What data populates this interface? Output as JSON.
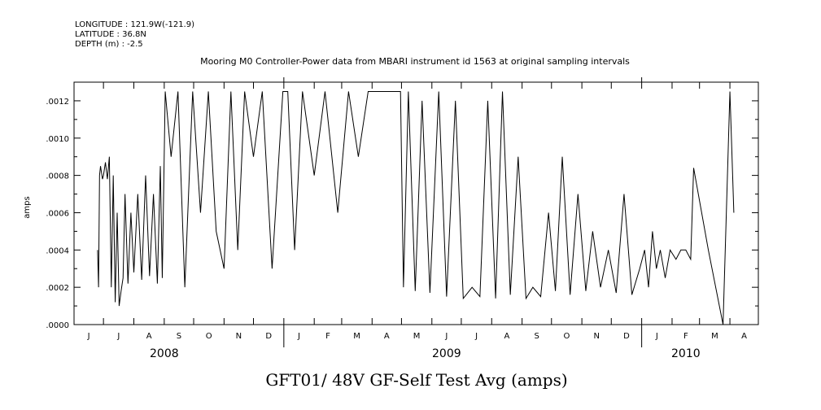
{
  "header": {
    "longitude": "LONGITUDE : 121.9W(-121.9)",
    "latitude": "LATITUDE : 36.8N",
    "depth": "DEPTH (m) : -2.5"
  },
  "chart_data": {
    "type": "line",
    "title": "Mooring M0 Controller-Power data from MBARI instrument id 1563 at original sampling intervals",
    "xlabel": "GFT01/ 48V GF-Self Test Avg (amps)",
    "ylabel": "amps",
    "ylim": [
      0,
      0.0013
    ],
    "yticks": [
      ".0000",
      ".0002",
      ".0004",
      ".0006",
      ".0008",
      ".0010",
      ".0012"
    ],
    "ytick_values": [
      0,
      0.0002,
      0.0004,
      0.0006,
      0.0008,
      0.001,
      0.0012
    ],
    "xlim": [
      "2008-06-01",
      "2010-04-30"
    ],
    "month_labels": [
      "J",
      "J",
      "A",
      "S",
      "O",
      "N",
      "D",
      "J",
      "F",
      "M",
      "A",
      "M",
      "J",
      "J",
      "A",
      "S",
      "O",
      "N",
      "D",
      "J",
      "F",
      "M",
      "A"
    ],
    "month_starts": [
      "2008-06-01",
      "2008-07-01",
      "2008-08-01",
      "2008-09-01",
      "2008-10-01",
      "2008-11-01",
      "2008-12-01",
      "2009-01-01",
      "2009-02-01",
      "2009-03-01",
      "2009-04-01",
      "2009-05-01",
      "2009-06-01",
      "2009-07-01",
      "2009-08-01",
      "2009-09-01",
      "2009-10-01",
      "2009-11-01",
      "2009-12-01",
      "2010-01-01",
      "2010-02-01",
      "2010-03-01",
      "2010-04-01"
    ],
    "years": [
      {
        "label": "2008",
        "date": "2008-09-01"
      },
      {
        "label": "2009",
        "date": "2009-06-16"
      },
      {
        "label": "2010",
        "date": "2010-02-15"
      }
    ],
    "series": [
      {
        "x": [
          "2008-06-25",
          "2008-06-26",
          "2008-06-27",
          "2008-06-28",
          "2008-06-30",
          "2008-07-01",
          "2008-07-03",
          "2008-07-05",
          "2008-07-07",
          "2008-07-09",
          "2008-07-11",
          "2008-07-13",
          "2008-07-15",
          "2008-07-17",
          "2008-07-19",
          "2008-07-21",
          "2008-07-23",
          "2008-07-26",
          "2008-07-29",
          "2008-08-01",
          "2008-08-05",
          "2008-08-09",
          "2008-08-13",
          "2008-08-17",
          "2008-08-21",
          "2008-08-25",
          "2008-08-28",
          "2008-08-30",
          "2008-09-02",
          "2008-09-08",
          "2008-09-15",
          "2008-09-22",
          "2008-09-30",
          "2008-10-08",
          "2008-10-16",
          "2008-10-24",
          "2008-11-01",
          "2008-11-08",
          "2008-11-15",
          "2008-11-22",
          "2008-12-01",
          "2008-12-10",
          "2008-12-20",
          "2008-12-31",
          "2009-01-05",
          "2009-01-12",
          "2009-01-20",
          "2009-02-01",
          "2009-02-12",
          "2009-02-25",
          "2009-03-08",
          "2009-03-18",
          "2009-03-28",
          "2009-04-05",
          "2009-04-15",
          "2009-04-25",
          "2009-04-30",
          "2009-05-03",
          "2009-05-08",
          "2009-05-15",
          "2009-05-22",
          "2009-05-30",
          "2009-06-08",
          "2009-06-16",
          "2009-06-25",
          "2009-07-03",
          "2009-07-12",
          "2009-07-20",
          "2009-07-28",
          "2009-08-05",
          "2009-08-12",
          "2009-08-20",
          "2009-08-28",
          "2009-09-05",
          "2009-09-12",
          "2009-09-20",
          "2009-09-28",
          "2009-10-05",
          "2009-10-12",
          "2009-10-20",
          "2009-10-28",
          "2009-11-05",
          "2009-11-12",
          "2009-11-20",
          "2009-11-28",
          "2009-12-06",
          "2009-12-14",
          "2009-12-22",
          "2009-12-30",
          "2010-01-04",
          "2010-01-08",
          "2010-01-12",
          "2010-01-16",
          "2010-01-20",
          "2010-01-25",
          "2010-01-30",
          "2010-02-05",
          "2010-02-10",
          "2010-02-15",
          "2010-02-20",
          "2010-02-23",
          "2010-03-10",
          "2010-03-25",
          "2010-04-01",
          "2010-04-05"
        ],
        "y": [
          0.0004,
          0.0002,
          0.0008,
          0.00085,
          0.00078,
          0.0008,
          0.00087,
          0.00078,
          0.0009,
          0.0002,
          0.0008,
          0.00012,
          0.0006,
          0.0001,
          0.00018,
          0.00025,
          0.0007,
          0.00022,
          0.0006,
          0.00028,
          0.0007,
          0.00024,
          0.0008,
          0.00026,
          0.0007,
          0.00022,
          0.00085,
          0.00025,
          0.00125,
          0.0009,
          0.00125,
          0.0002,
          0.00125,
          0.0006,
          0.00125,
          0.0005,
          0.0003,
          0.00125,
          0.0004,
          0.00125,
          0.0009,
          0.00125,
          0.0003,
          0.00125,
          0.00125,
          0.0004,
          0.00125,
          0.0008,
          0.00125,
          0.0006,
          0.00125,
          0.0009,
          0.00125,
          0.00125,
          0.00125,
          0.00125,
          0.00125,
          0.0002,
          0.00125,
          0.00018,
          0.0012,
          0.00017,
          0.00125,
          0.00015,
          0.0012,
          0.00014,
          0.0002,
          0.00015,
          0.0012,
          0.00014,
          0.00125,
          0.00016,
          0.0009,
          0.00014,
          0.0002,
          0.00015,
          0.0006,
          0.00018,
          0.0009,
          0.00016,
          0.0007,
          0.00018,
          0.0005,
          0.0002,
          0.0004,
          0.00017,
          0.0007,
          0.00016,
          0.0003,
          0.0004,
          0.0002,
          0.0005,
          0.0003,
          0.0004,
          0.00025,
          0.0004,
          0.00035,
          0.0004,
          0.0004,
          0.00035,
          0.00084,
          0.0004,
          0.0,
          0.00125,
          0.0006
        ]
      }
    ],
    "grid": false
  }
}
